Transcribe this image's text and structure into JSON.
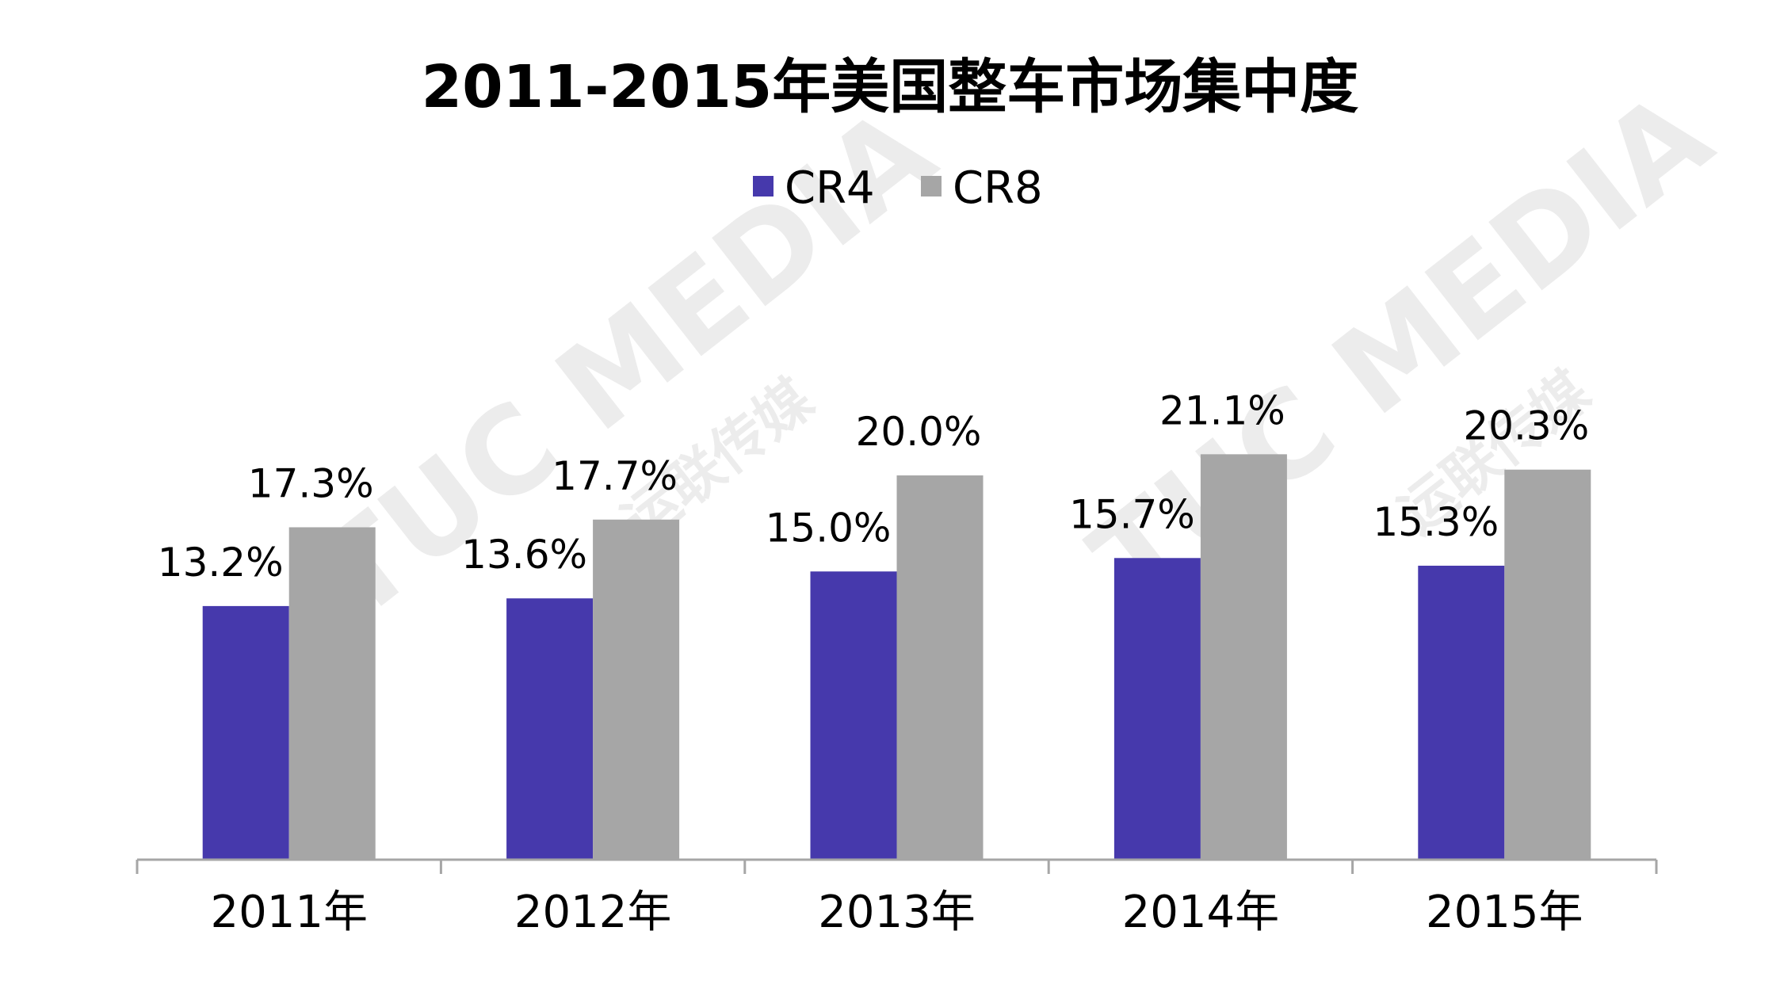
{
  "chart_data": {
    "type": "bar",
    "title": "2011-2015年美国整车市场集中度",
    "categories": [
      "2011年",
      "2012年",
      "2013年",
      "2014年",
      "2015年"
    ],
    "series": [
      {
        "name": "CR4",
        "color": "#4639AC",
        "values": [
          13.2,
          13.6,
          15.0,
          15.7,
          15.3
        ],
        "labels": [
          "13.2%",
          "13.6%",
          "15.0%",
          "15.7%",
          "15.3%"
        ]
      },
      {
        "name": "CR8",
        "color": "#A6A6A6",
        "values": [
          17.3,
          17.7,
          20.0,
          21.1,
          20.3
        ],
        "labels": [
          "17.3%",
          "17.7%",
          "20.0%",
          "21.1%",
          "20.3%"
        ]
      }
    ],
    "ylim": [
      0,
      30
    ],
    "grid": false,
    "legend_position": "top-center",
    "axis_color": "#A6A6A6"
  },
  "watermark": {
    "text_latin": "TUC MEDIA",
    "text_cjk": "运联传媒"
  }
}
